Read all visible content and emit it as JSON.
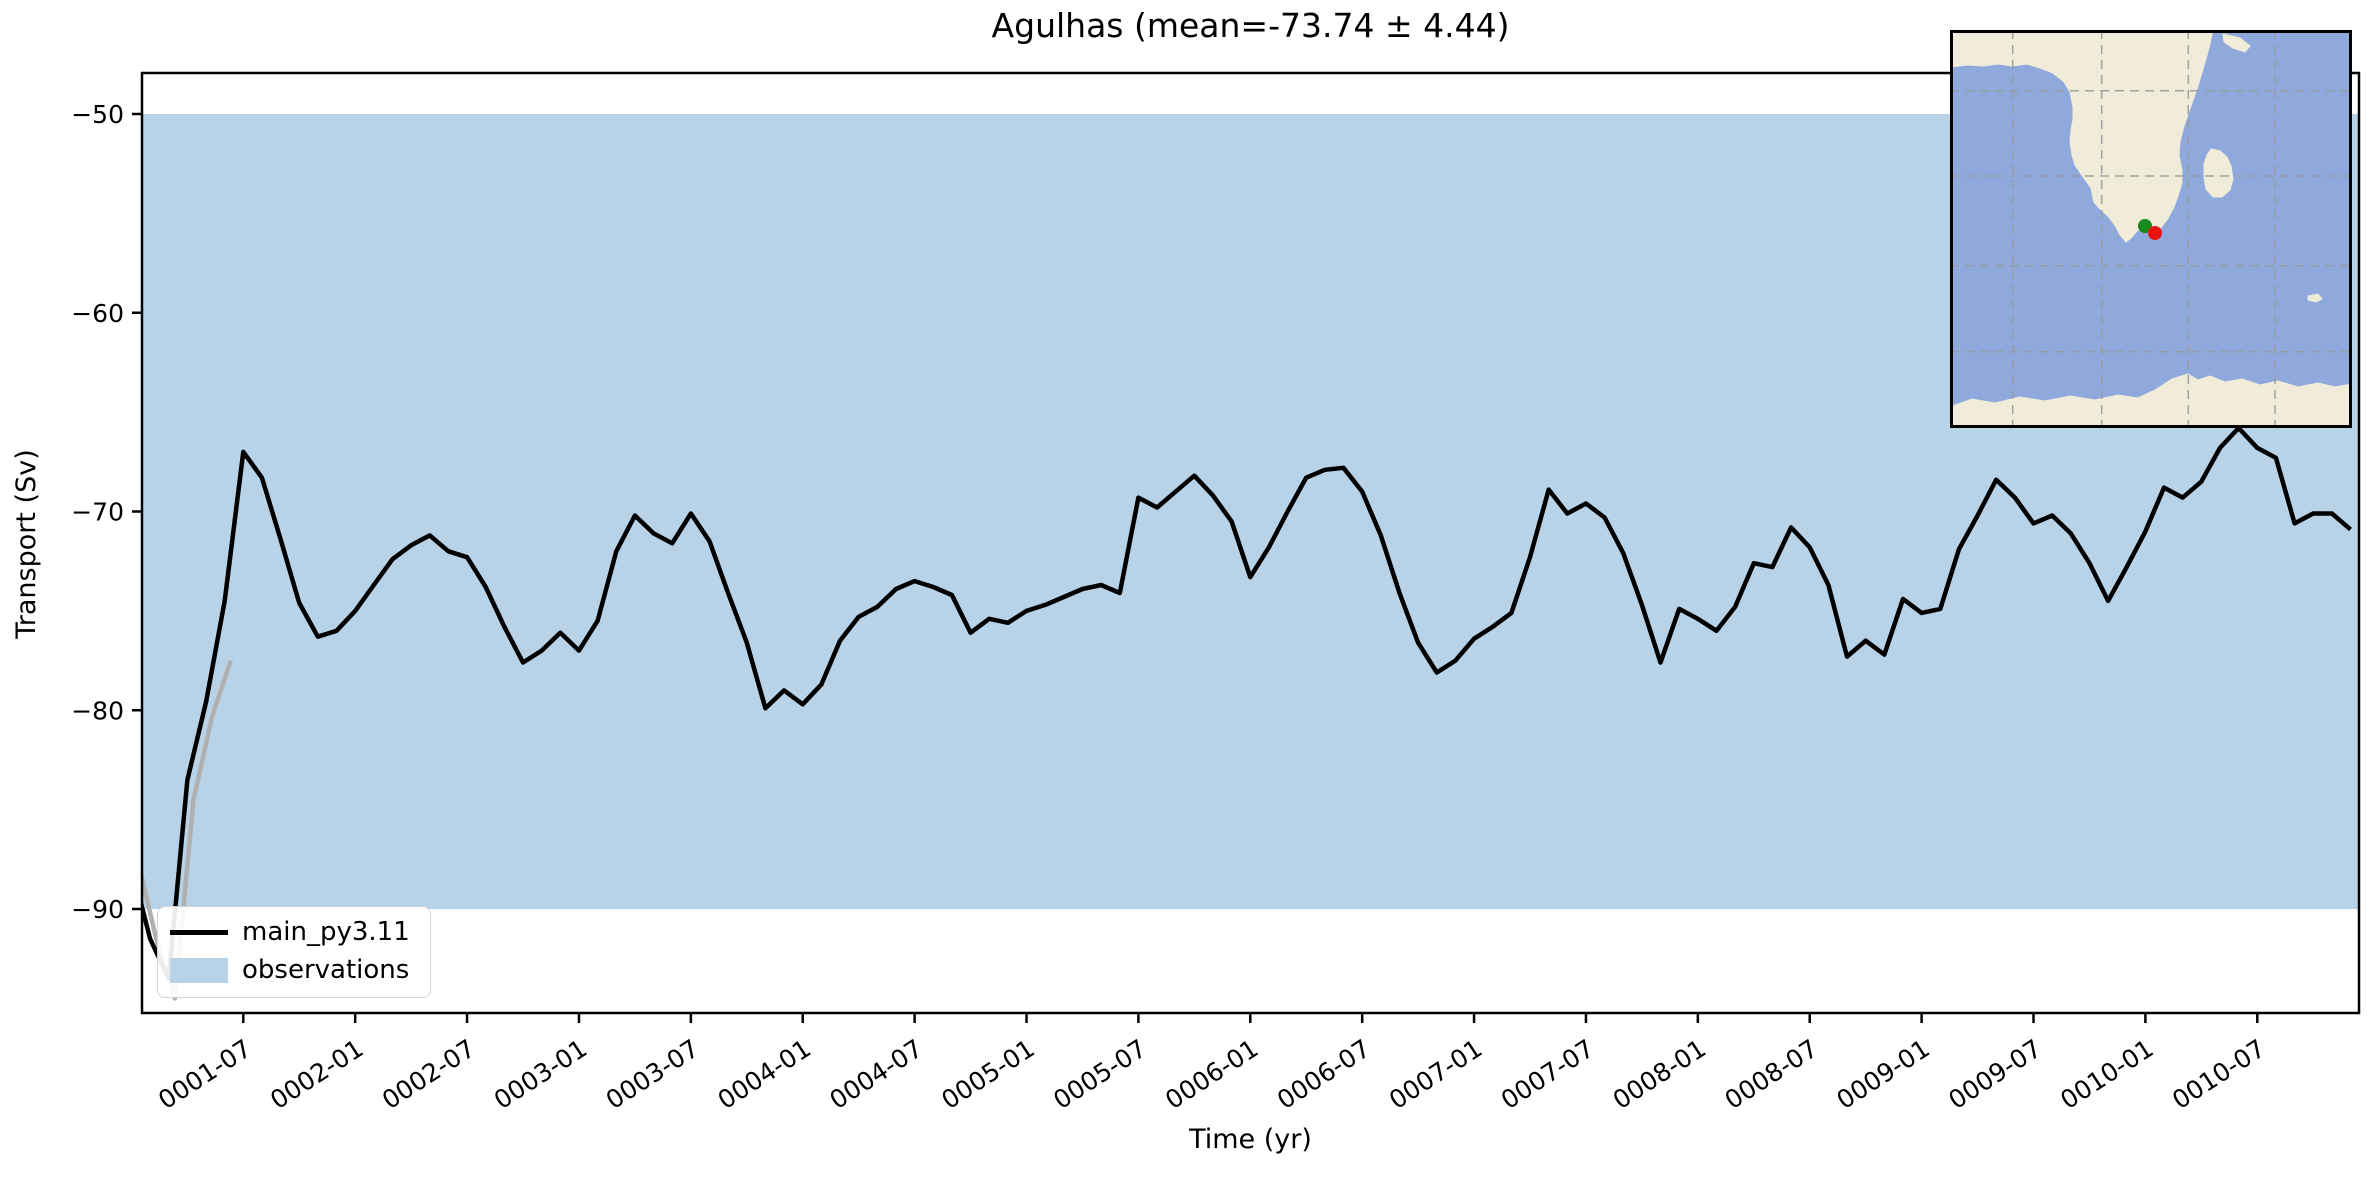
{
  "title": "Agulhas (mean=-73.74 ± 4.44)",
  "stats": {
    "mean": -73.74,
    "std": 4.44
  },
  "xlabel": "Time (yr)",
  "ylabel": "Transport (Sv)",
  "legend": {
    "line_label": "main_py3.11",
    "band_label": "observations"
  },
  "chart_data": {
    "type": "line",
    "title": "Agulhas (mean=-73.74 ± 4.44)",
    "xlabel": "Time (yr)",
    "ylabel": "Transport (Sv)",
    "x_start": "0001-01",
    "x_end": "0010-12",
    "x_freq": "monthly",
    "x_tick_labels": [
      "0001-07",
      "0002-01",
      "0002-07",
      "0003-01",
      "0003-07",
      "0004-01",
      "0004-07",
      "0005-01",
      "0005-07",
      "0006-01",
      "0006-07",
      "0007-01",
      "0007-07",
      "0008-01",
      "0008-07",
      "0009-01",
      "0009-07",
      "0010-01",
      "0010-07"
    ],
    "y_ticks": [
      -50,
      -60,
      -70,
      -80,
      -90
    ],
    "y_tick_labels": [
      "−50",
      "−60",
      "−70",
      "−80",
      "−90"
    ],
    "ylim": [
      -95.2,
      -47.9
    ],
    "grid": false,
    "legend_position": "lower left",
    "band": {
      "label": "observations",
      "range": [
        -90,
        -50
      ],
      "color": "#b8d3e8"
    },
    "series": [
      {
        "name": "main_py3.11",
        "color": "#000000",
        "values": [
          -87.8,
          -91.5,
          -93.5,
          -83.5,
          -79.6,
          -74.5,
          -67.0,
          -68.3,
          -71.4,
          -74.6,
          -76.3,
          -76.0,
          -75.0,
          -73.7,
          -72.4,
          -71.7,
          -71.2,
          -72.0,
          -72.3,
          -73.8,
          -75.8,
          -77.6,
          -77.0,
          -76.1,
          -77.0,
          -75.5,
          -72.0,
          -70.2,
          -71.1,
          -71.6,
          -70.1,
          -71.5,
          -74.1,
          -76.6,
          -79.9,
          -79.0,
          -79.7,
          -78.7,
          -76.5,
          -75.3,
          -74.8,
          -73.9,
          -73.5,
          -73.8,
          -74.2,
          -76.1,
          -75.4,
          -75.6,
          -75.0,
          -74.7,
          -74.3,
          -73.9,
          -73.7,
          -74.1,
          -69.3,
          -69.8,
          -69.0,
          -68.2,
          -69.2,
          -70.5,
          -73.3,
          -71.8,
          -70.0,
          -68.3,
          -67.9,
          -67.8,
          -69.0,
          -71.2,
          -74.1,
          -76.6,
          -78.1,
          -77.5,
          -76.4,
          -75.8,
          -75.1,
          -72.3,
          -68.9,
          -70.1,
          -69.6,
          -70.3,
          -72.1,
          -74.7,
          -77.6,
          -74.9,
          -75.4,
          -76.0,
          -74.8,
          -72.6,
          -72.8,
          -70.8,
          -71.8,
          -73.7,
          -77.3,
          -76.5,
          -77.2,
          -74.4,
          -75.1,
          -74.9,
          -71.9,
          -70.2,
          -68.4,
          -69.3,
          -70.6,
          -70.2,
          -71.1,
          -72.6,
          -74.5,
          -72.8,
          -71.0,
          -68.8,
          -69.3,
          -68.5,
          -66.8,
          -65.8,
          -66.8,
          -67.3,
          -70.6,
          -70.1,
          -70.1,
          -70.9
        ]
      }
    ],
    "ghost_series": {
      "name": "spinup-ghost",
      "color": "#b0b0b0",
      "month_offset": 0.33,
      "values": [
        -87.5,
        -91.5,
        -94.5,
        -84.5,
        -80.3,
        -77.5
      ]
    }
  },
  "inset_map": {
    "ocean_color": "#8fa9dc",
    "land_color": "#f0ecd9",
    "grid_color": "#9a9a9a",
    "border_color": "#000000",
    "markers": [
      {
        "name": "model-section-marker",
        "color": "#178a1e",
        "x": 195,
        "y": 196
      },
      {
        "name": "obs-section-marker",
        "color": "#e8150f",
        "x": 205,
        "y": 203
      }
    ]
  }
}
